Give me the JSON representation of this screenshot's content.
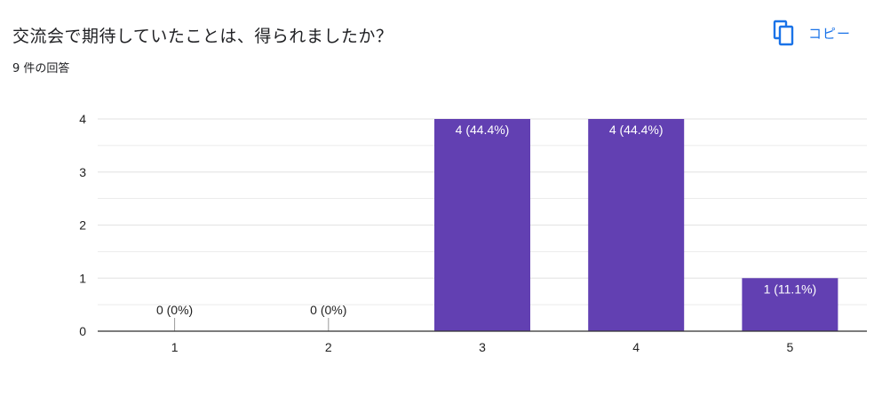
{
  "question": {
    "title": "交流会で期待していたことは、得られましたか？",
    "responses": "9 件の回答"
  },
  "copy": {
    "label": "コピー",
    "icon": "copy-icon"
  },
  "colors": {
    "bar": "#6240b2",
    "grid": "#e6e6e6",
    "axis": "#333333",
    "accent": "#1a73e8"
  },
  "chart_data": {
    "type": "bar",
    "categories": [
      "1",
      "2",
      "3",
      "4",
      "5"
    ],
    "values": [
      0,
      0,
      4,
      4,
      1
    ],
    "data_labels": [
      "0 (0%)",
      "0 (0%)",
      "4 (44.4%)",
      "4 (44.4%)",
      "1 (11.1%)"
    ],
    "ylim": [
      0,
      4
    ],
    "yticks": [
      "0",
      "1",
      "2",
      "3",
      "4"
    ],
    "grid": true,
    "title": "",
    "xlabel": "",
    "ylabel": ""
  }
}
